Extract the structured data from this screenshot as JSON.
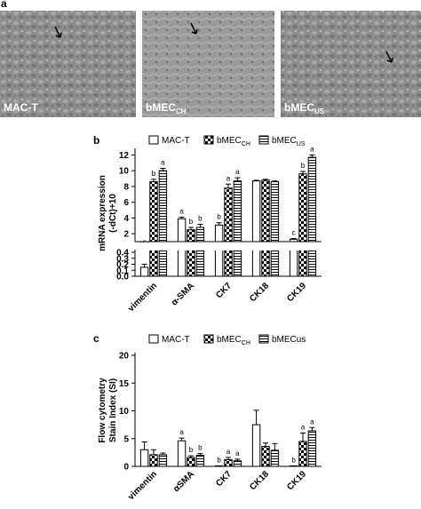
{
  "figure": {
    "panel_a": {
      "panel_label": "a",
      "images": [
        {
          "label": "MAC-T"
        },
        {
          "label": "bMEC",
          "label_sub": "CH"
        },
        {
          "label": "bMEC",
          "label_sub": "US"
        }
      ]
    }
  },
  "chart_data": [
    {
      "type": "bar",
      "panel_label": "b",
      "y_label": [
        "mRNA expression",
        "(-dCt)+10"
      ],
      "categories": [
        "vimentin",
        "α-SMA",
        "CK7",
        "CK18",
        "CK19"
      ],
      "series": [
        {
          "name": "MAC-T",
          "color": "#000000",
          "fill": "white",
          "values": [
            0.15,
            3.9,
            3.1,
            8.7,
            1.3
          ],
          "errors": [
            0.05,
            0.2,
            0.3,
            0.1,
            0.1
          ],
          "letters": [
            "c",
            "a",
            "b",
            null,
            "c"
          ]
        },
        {
          "name": "bMEC",
          "name_sub": "CH",
          "color": "#000000",
          "fill": "checker",
          "values": [
            8.6,
            2.5,
            7.8,
            8.8,
            9.6
          ],
          "errors": [
            0.3,
            0.3,
            0.5,
            0.1,
            0.3
          ],
          "letters": [
            "b",
            "b",
            "a",
            null,
            "b"
          ]
        },
        {
          "name": "bMEC",
          "name_sub": "US",
          "color": "#000000",
          "fill": "hstripe",
          "values": [
            10.0,
            2.8,
            8.7,
            8.6,
            11.7
          ],
          "errors": [
            0.3,
            0.4,
            0.4,
            0.1,
            0.3
          ],
          "letters": [
            "a",
            "b",
            "a",
            null,
            "a"
          ]
        }
      ],
      "ylim": [
        1,
        12.5
      ],
      "yticks": [
        2,
        4,
        6,
        8,
        10,
        12
      ],
      "ylim_lower": [
        0,
        0.4
      ],
      "yticks_lower": [
        {
          "value": 0,
          "label": "0.0"
        },
        0.1,
        0.2,
        0.3,
        0.4
      ]
    },
    {
      "type": "bar",
      "panel_label": "c",
      "y_label": [
        "Flow cytometry",
        "Stain Index (SI)"
      ],
      "categories": [
        "vimentin",
        "αSMA",
        "CK7",
        "CK18",
        "CK19"
      ],
      "series": [
        {
          "name": "MAC-T",
          "color": "#000000",
          "fill": "white",
          "values": [
            3.0,
            4.6,
            0.1,
            7.5,
            0.1
          ],
          "errors": [
            1.4,
            0.5,
            0,
            2.6,
            0
          ],
          "letters": [
            null,
            "a",
            "b",
            null,
            "b"
          ]
        },
        {
          "name": "bMEC",
          "name_sub": "CH",
          "color": "#000000",
          "fill": "checker",
          "values": [
            2.1,
            1.6,
            1.2,
            3.6,
            4.5
          ],
          "errors": [
            0.9,
            0.3,
            0.4,
            0.6,
            1.5
          ],
          "letters": [
            null,
            "b",
            "a",
            null,
            "a"
          ]
        },
        {
          "name": "bMECus",
          "color": "#000000",
          "fill": "hstripe",
          "values": [
            2.1,
            2.0,
            1.0,
            2.9,
            6.4
          ],
          "errors": [
            0.3,
            0.3,
            0.3,
            1.2,
            0.6
          ],
          "letters": [
            null,
            "b",
            "a",
            null,
            "a"
          ]
        }
      ],
      "ylim": [
        0,
        20
      ],
      "yticks": [
        0,
        5,
        10,
        15,
        20
      ]
    }
  ]
}
